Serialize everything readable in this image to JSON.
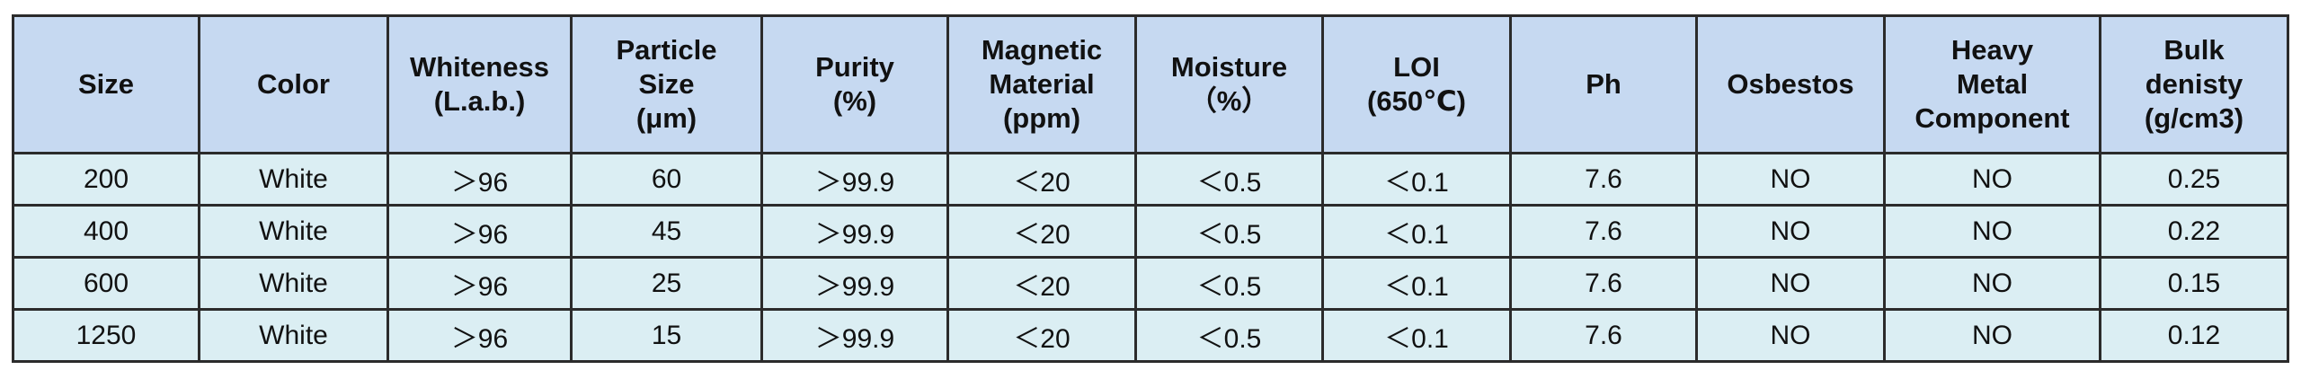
{
  "table": {
    "header": [
      [
        "Size"
      ],
      [
        "Color"
      ],
      [
        "Whiteness",
        "(L.a.b.)"
      ],
      [
        "Particle",
        "Size",
        "(μm)"
      ],
      [
        "Purity",
        "(%)"
      ],
      [
        "Magnetic",
        "Material",
        "(ppm)"
      ],
      [
        "Moisture",
        "（%）"
      ],
      [
        "LOI",
        "(650℃)"
      ],
      [
        "Ph"
      ],
      [
        "Osbestos"
      ],
      [
        "Heavy",
        "Metal",
        "Component"
      ],
      [
        "Bulk",
        "denisty",
        "(g/cm3)"
      ]
    ],
    "rows": [
      [
        "200",
        "White",
        "＞96",
        "60",
        "＞99.9",
        "＜20",
        "＜0.5",
        "＜0.1",
        "7.6",
        "NO",
        "NO",
        "0.25"
      ],
      [
        "400",
        "White",
        "＞96",
        "45",
        "＞99.9",
        "＜20",
        "＜0.5",
        "＜0.1",
        "7.6",
        "NO",
        "NO",
        "0.22"
      ],
      [
        "600",
        "White",
        "＞96",
        "25",
        "＞99.9",
        "＜20",
        "＜0.5",
        "＜0.1",
        "7.6",
        "NO",
        "NO",
        "0.15"
      ],
      [
        "1250",
        "White",
        "＞96",
        "15",
        "＞99.9",
        "＜20",
        "＜0.5",
        "＜0.1",
        "7.6",
        "NO",
        "NO",
        "0.12"
      ]
    ]
  }
}
